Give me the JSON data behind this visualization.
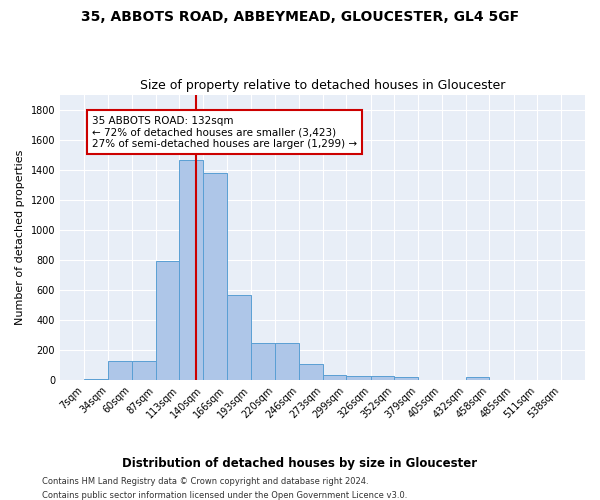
{
  "title1": "35, ABBOTS ROAD, ABBEYMEAD, GLOUCESTER, GL4 5GF",
  "title2": "Size of property relative to detached houses in Gloucester",
  "xlabel": "Distribution of detached houses by size in Gloucester",
  "ylabel": "Number of detached properties",
  "bar_edges": [
    7,
    34,
    60,
    87,
    113,
    140,
    166,
    193,
    220,
    246,
    273,
    299,
    326,
    352,
    379,
    405,
    432,
    458,
    485,
    511,
    538
  ],
  "bar_heights": [
    10,
    130,
    130,
    795,
    1468,
    1375,
    570,
    248,
    248,
    110,
    35,
    30,
    30,
    20,
    0,
    0,
    20,
    0,
    0,
    0
  ],
  "bar_color": "#aec6e8",
  "bar_edgecolor": "#5a9fd4",
  "vline_x": 132,
  "vline_color": "#cc0000",
  "annotation_text": "35 ABBOTS ROAD: 132sqm\n← 72% of detached houses are smaller (3,423)\n27% of semi-detached houses are larger (1,299) →",
  "annotation_box_color": "#ffffff",
  "annotation_box_edgecolor": "#cc0000",
  "footnote1": "Contains HM Land Registry data © Crown copyright and database right 2024.",
  "footnote2": "Contains public sector information licensed under the Open Government Licence v3.0.",
  "ylim": [
    0,
    1900
  ],
  "yticks": [
    0,
    200,
    400,
    600,
    800,
    1000,
    1200,
    1400,
    1600,
    1800
  ],
  "background_color": "#e8eef7",
  "fig_background_color": "#ffffff",
  "grid_color": "#ffffff",
  "title1_fontsize": 10,
  "title2_fontsize": 9,
  "xlabel_fontsize": 8.5,
  "ylabel_fontsize": 8,
  "tick_fontsize": 7,
  "annot_fontsize": 7.5
}
